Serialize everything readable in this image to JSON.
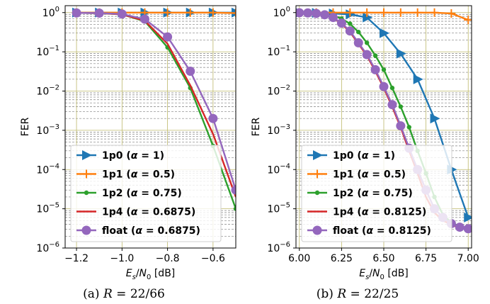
{
  "chart_data": [
    {
      "type": "line",
      "xlabel": "E_s/N_0 [dB]",
      "ylabel": "FER",
      "caption": "(a) R = 22/66",
      "xlim": [
        -1.25,
        -0.5
      ],
      "ylim": [
        1e-06,
        1.5
      ],
      "x_scale": "linear",
      "y_scale": "log",
      "grid": "on (major and minor)",
      "legend_position": "bottom-center",
      "x_ticks": [
        -1.2,
        -1.0,
        -0.8,
        -0.6
      ],
      "x_tick_labels": [
        "−1.2",
        "−1.0",
        "−0.8",
        "−0.6"
      ],
      "y_ticks": [
        1e-06,
        1e-05,
        0.0001,
        0.001,
        0.01,
        0.1,
        1
      ],
      "y_tick_labels": [
        "10",
        "10",
        "10",
        "10",
        "10",
        "10",
        "10"
      ],
      "y_tick_exps": [
        "−6",
        "−5",
        "−4",
        "−3",
        "−2",
        "−1",
        "0"
      ],
      "series": [
        {
          "name": "1p0 (α = 1)",
          "label_main": "1p0 (",
          "label_alpha": "α",
          "label_value": " = 1)",
          "color": "#1f77b4",
          "marker": "triangle-right",
          "x": [
            -1.2,
            -1.1,
            -1.0,
            -0.9,
            -0.8,
            -0.7,
            -0.6,
            -0.5
          ],
          "values": [
            1.0,
            1.0,
            1.0,
            1.0,
            1.0,
            1.0,
            1.0,
            1.0
          ]
        },
        {
          "name": "1p1 (α = 0.5)",
          "label_main": "1p1 (",
          "label_alpha": "α",
          "label_value": " = 0.5)",
          "color": "#ff7f0e",
          "marker": "plus",
          "x": [
            -1.2,
            -1.1,
            -1.0,
            -0.9,
            -0.8,
            -0.7,
            -0.6,
            -0.5
          ],
          "values": [
            1.0,
            1.0,
            1.0,
            1.0,
            1.0,
            1.0,
            1.0,
            0.97
          ]
        },
        {
          "name": "1p2 (α = 0.75)",
          "label_main": "1p2 (",
          "label_alpha": "α",
          "label_value": " = 0.75)",
          "color": "#2ca02c",
          "marker": "dot",
          "x": [
            -1.2,
            -1.1,
            -1.0,
            -0.9,
            -0.8,
            -0.7,
            -0.6,
            -0.5
          ],
          "values": [
            0.98,
            0.97,
            0.9,
            0.6,
            0.13,
            0.012,
            0.0004,
            1e-05
          ]
        },
        {
          "name": "1p4 (α = 0.6875)",
          "label_main": "1p4 (",
          "label_alpha": "α",
          "label_value": " = 0.6875)",
          "color": "#d62728",
          "marker": "none",
          "x": [
            -1.2,
            -1.1,
            -1.0,
            -0.9,
            -0.8,
            -0.7,
            -0.6,
            -0.5
          ],
          "values": [
            0.98,
            0.97,
            0.9,
            0.62,
            0.16,
            0.014,
            0.0008,
            2e-05
          ]
        },
        {
          "name": "float (α = 0.6875)",
          "label_main": "float (",
          "label_alpha": "α",
          "label_value": " = 0.6875)",
          "color": "#9467bd",
          "marker": "circle",
          "x": [
            -1.2,
            -1.1,
            -1.0,
            -0.9,
            -0.8,
            -0.7,
            -0.6,
            -0.5
          ],
          "values": [
            0.98,
            0.97,
            0.92,
            0.68,
            0.24,
            0.032,
            0.002,
            3e-05
          ]
        }
      ]
    },
    {
      "type": "line",
      "xlabel": "E_s/N_0 [dB]",
      "ylabel": "FER",
      "caption": "(b) R = 22/25",
      "xlim": [
        5.98,
        7.02
      ],
      "ylim": [
        1e-06,
        1.5
      ],
      "x_scale": "linear",
      "y_scale": "log",
      "grid": "on (major and minor)",
      "legend_position": "bottom-center",
      "x_ticks": [
        6.0,
        6.25,
        6.5,
        6.75,
        7.0
      ],
      "x_tick_labels": [
        "6.00",
        "6.25",
        "6.50",
        "6.75",
        "7.00"
      ],
      "y_ticks": [
        1e-06,
        1e-05,
        0.0001,
        0.001,
        0.01,
        0.1,
        1
      ],
      "y_tick_labels": [
        "10",
        "10",
        "10",
        "10",
        "10",
        "10",
        "10"
      ],
      "y_tick_exps": [
        "−6",
        "−5",
        "−4",
        "−3",
        "−2",
        "−1",
        "0"
      ],
      "series": [
        {
          "name": "1p0 (α = 1)",
          "label_main": "1p0 (",
          "label_alpha": "α",
          "label_value": " = 1)",
          "color": "#1f77b4",
          "marker": "triangle-right",
          "x": [
            6.0,
            6.1,
            6.2,
            6.3,
            6.4,
            6.5,
            6.6,
            6.7,
            6.8,
            6.9,
            7.0
          ],
          "values": [
            0.99,
            0.98,
            0.95,
            0.9,
            0.75,
            0.3,
            0.09,
            0.02,
            0.002,
            0.0001,
            6e-06
          ]
        },
        {
          "name": "1p1 (α = 0.5)",
          "label_main": "1p1 (",
          "label_alpha": "α",
          "label_value": " = 0.5)",
          "color": "#ff7f0e",
          "marker": "plus",
          "x": [
            6.0,
            6.1,
            6.2,
            6.3,
            6.4,
            6.5,
            6.6,
            6.7,
            6.8,
            6.9,
            7.0
          ],
          "values": [
            1.0,
            1.0,
            1.0,
            1.0,
            1.0,
            1.0,
            1.0,
            1.0,
            1.0,
            0.95,
            0.65
          ]
        },
        {
          "name": "1p2 (α = 0.75)",
          "label_main": "1p2 (",
          "label_alpha": "α",
          "label_value": " = 0.75)",
          "color": "#2ca02c",
          "marker": "dot",
          "x": [
            6.0,
            6.05,
            6.1,
            6.15,
            6.2,
            6.25,
            6.3,
            6.35,
            6.4,
            6.45,
            6.5,
            6.55,
            6.6,
            6.65,
            6.7,
            6.75,
            6.8,
            6.85,
            6.9,
            6.95,
            7.0
          ],
          "values": [
            0.99,
            0.98,
            0.96,
            0.92,
            0.84,
            0.7,
            0.52,
            0.32,
            0.17,
            0.08,
            0.035,
            0.012,
            0.004,
            0.0012,
            0.0003,
            8e-05,
            2e-05,
            7e-06,
            4.5e-06,
            3.5e-06,
            3e-06
          ]
        },
        {
          "name": "1p4 (α = 0.8125)",
          "label_main": "1p4 (",
          "label_alpha": "α",
          "label_value": " = 0.8125)",
          "color": "#d62728",
          "marker": "none",
          "x": [
            6.0,
            6.05,
            6.1,
            6.15,
            6.2,
            6.25,
            6.3,
            6.35,
            6.4,
            6.45,
            6.5,
            6.55,
            6.6,
            6.65,
            6.7,
            6.75,
            6.8,
            6.85,
            6.9,
            6.95,
            7.0
          ],
          "values": [
            0.99,
            0.98,
            0.95,
            0.88,
            0.74,
            0.52,
            0.32,
            0.16,
            0.08,
            0.032,
            0.012,
            0.004,
            0.0012,
            0.0003,
            8e-05,
            2e-05,
            8e-06,
            5e-06,
            4e-06,
            3.2e-06,
            3e-06
          ]
        },
        {
          "name": "float (α = 0.8125)",
          "label_main": "float (",
          "label_alpha": "α",
          "label_value": " = 0.8125)",
          "color": "#9467bd",
          "marker": "circle",
          "x": [
            6.0,
            6.05,
            6.1,
            6.15,
            6.2,
            6.25,
            6.3,
            6.35,
            6.4,
            6.45,
            6.5,
            6.55,
            6.6,
            6.65,
            6.7,
            6.75,
            6.8,
            6.85,
            6.9,
            6.95,
            7.0
          ],
          "values": [
            0.99,
            0.98,
            0.95,
            0.88,
            0.75,
            0.54,
            0.34,
            0.17,
            0.085,
            0.035,
            0.013,
            0.0045,
            0.0013,
            0.00035,
            0.0001,
            3e-05,
            1e-05,
            6e-06,
            4.2e-06,
            3.4e-06,
            3.1e-06
          ]
        }
      ]
    }
  ]
}
